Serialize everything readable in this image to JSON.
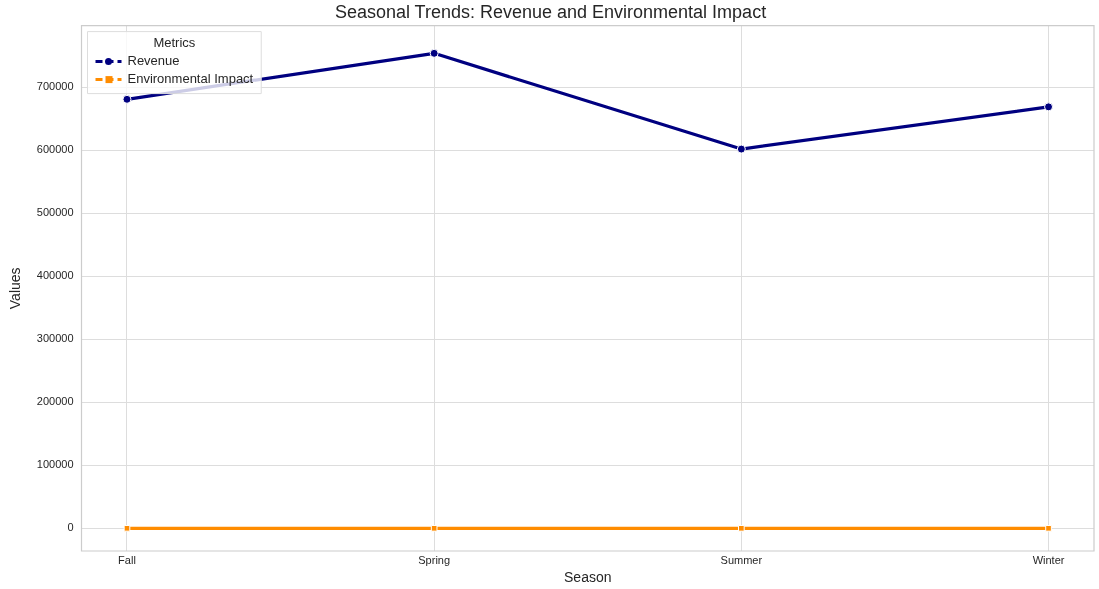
{
  "chart_data": {
    "type": "line",
    "title": "Seasonal Trends: Revenue and Environmental Impact",
    "xlabel": "Season",
    "ylabel": "Values",
    "legend_title": "Metrics",
    "categories": [
      "Fall",
      "Spring",
      "Summer",
      "Winter"
    ],
    "series": [
      {
        "name": "Revenue",
        "color": "#000080",
        "marker": "circle",
        "values": [
          681000,
          754000,
          602000,
          669000
        ]
      },
      {
        "name": "Environmental Impact",
        "color": "#ff8c00",
        "marker": "square",
        "values": [
          0,
          0,
          0,
          0
        ]
      }
    ],
    "ylim": [
      -36000,
      798000
    ],
    "yticks": [
      0,
      100000,
      200000,
      300000,
      400000,
      500000,
      600000,
      700000
    ],
    "grid": true,
    "legend": "top left",
    "line_style": "solid"
  }
}
